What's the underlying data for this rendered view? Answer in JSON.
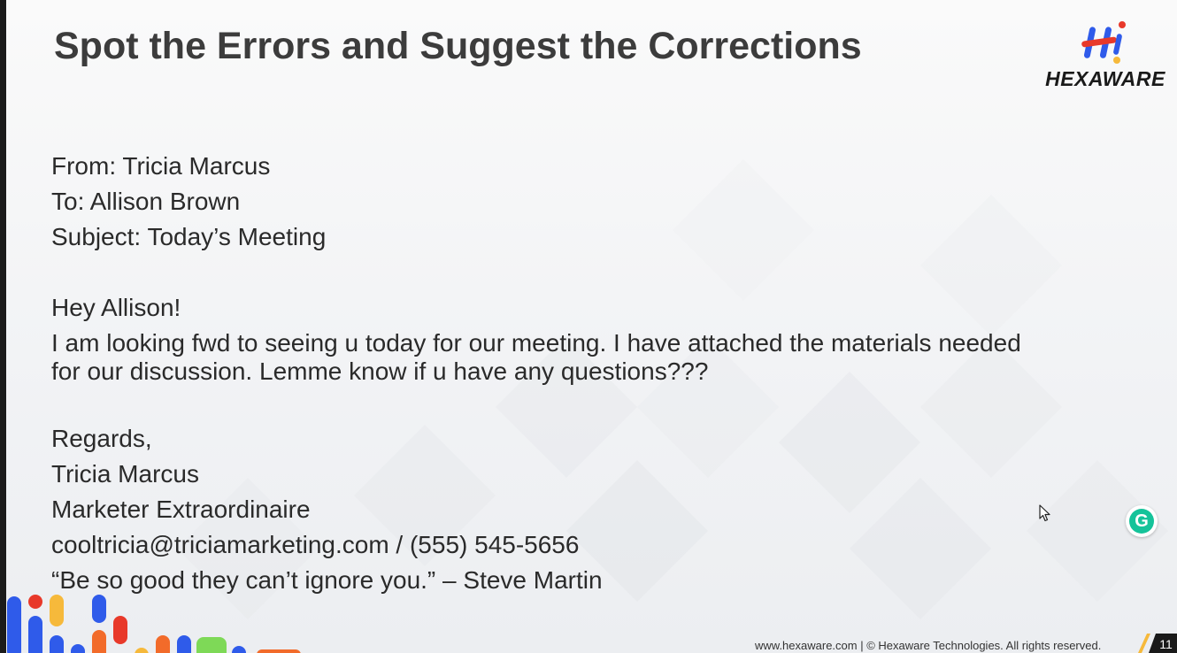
{
  "slide": {
    "title": "Spot the Errors and Suggest the Corrections"
  },
  "logo": {
    "text": "HEXAWARE",
    "icon": "hexaware-hi-logo"
  },
  "email": {
    "from": "From: Tricia Marcus",
    "to": "To: Allison Brown",
    "subject": "Subject: Today’s Meeting",
    "greeting": "Hey Allison!",
    "body_line1": "I am looking fwd to seeing u today for our meeting. I have attached the materials needed",
    "body_line2": "for our discussion. Lemme know if u have any questions???",
    "closing": "Regards,",
    "signature_name": "Tricia Marcus",
    "signature_title": "Marketer Extraordinaire",
    "signature_contact": "cooltricia@triciamarketing.com / (555) 545-5656",
    "signature_quote": "“Be so good they can’t ignore you.” – Steve Martin"
  },
  "footer": {
    "text": "www.hexaware.com  | © Hexaware Technologies. All rights reserved.",
    "page_number": "11"
  },
  "colors": {
    "accent_blue": "#2f5bea",
    "accent_red": "#e8392a",
    "accent_yellow": "#f6b93b",
    "accent_orange": "#f26b2a",
    "accent_green": "#7ed957",
    "grammarly_green": "#15c39a"
  },
  "icons": {
    "cursor": "mouse-pointer-icon",
    "grammarly": "grammarly-icon"
  }
}
